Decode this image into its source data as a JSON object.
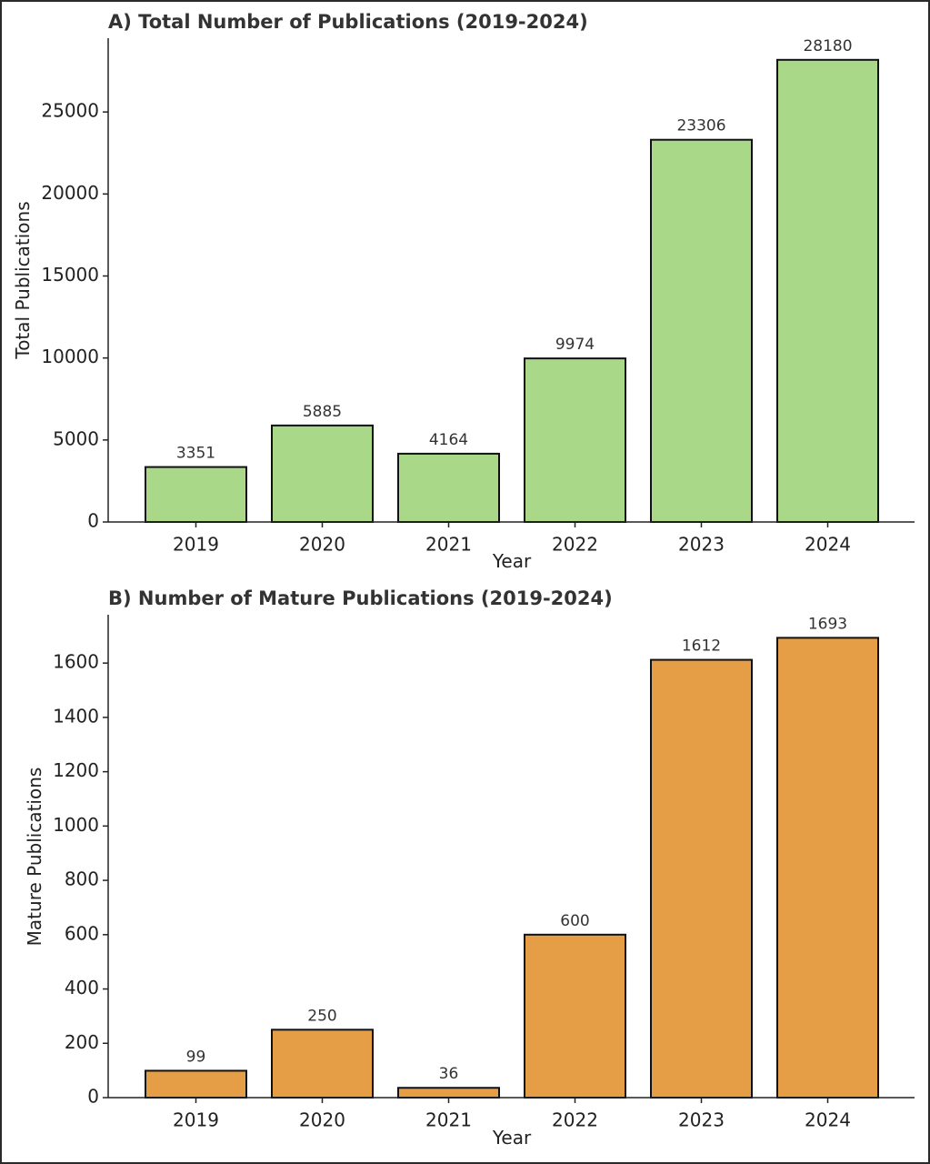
{
  "chart_data": [
    {
      "type": "bar",
      "title": "A) Total Number of Publications (2019-2024)",
      "xlabel": "Year",
      "ylabel": "Total Publications",
      "categories": [
        "2019",
        "2020",
        "2021",
        "2022",
        "2023",
        "2024"
      ],
      "values": [
        3351,
        5885,
        4164,
        9974,
        23306,
        28180
      ],
      "data_labels": [
        "3351",
        "5885",
        "4164",
        "9974",
        "23306",
        "28180"
      ],
      "yticks": [
        0,
        5000,
        10000,
        15000,
        20000,
        25000
      ],
      "ylim": [
        0,
        29500
      ],
      "grid": false,
      "bar_color": "#a8d888",
      "edge_color": "#111111"
    },
    {
      "type": "bar",
      "title": "B) Number of Mature Publications (2019-2024)",
      "xlabel": "Year",
      "ylabel": "Mature Publications",
      "categories": [
        "2019",
        "2020",
        "2021",
        "2022",
        "2023",
        "2024"
      ],
      "values": [
        99,
        250,
        36,
        600,
        1612,
        1693
      ],
      "data_labels": [
        "99",
        "250",
        "36",
        "600",
        "1612",
        "1693"
      ],
      "yticks": [
        0,
        200,
        400,
        600,
        800,
        1000,
        1200,
        1400,
        1600
      ],
      "ylim": [
        0,
        1778
      ],
      "grid": false,
      "bar_color": "#e59e45",
      "edge_color": "#111111"
    }
  ]
}
